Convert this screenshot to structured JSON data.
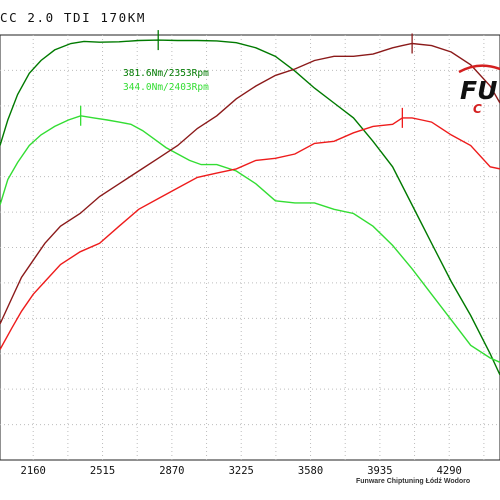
{
  "title": "CC 2.0 TDI 170KM",
  "chart_data": {
    "type": "line",
    "title": "CC 2.0 TDI 170KM",
    "xlabel": "",
    "ylabel": "",
    "x_ticks": [
      2160,
      2515,
      2870,
      3225,
      3580,
      3935,
      4290
    ],
    "xlim": [
      1990,
      4550
    ],
    "ylim": [
      0,
      100
    ],
    "grid": true,
    "annotations": [
      {
        "text": "381.6Nm/2353Rpm",
        "color": "#007a00"
      },
      {
        "text": "344.0Nm/2403Rpm",
        "color": "#33dd33"
      }
    ],
    "series": [
      {
        "color": "#007a00",
        "x": [
          1990,
          2030,
          2080,
          2140,
          2200,
          2270,
          2353,
          2420,
          2500,
          2600,
          2700,
          2800,
          2900,
          3000,
          3100,
          3200,
          3300,
          3400,
          3500,
          3600,
          3700,
          3800,
          3900,
          4000,
          4100,
          4200,
          4300,
          4400,
          4500,
          4550
        ],
        "y": [
          74,
          80,
          86,
          91,
          94,
          96.5,
          98,
          98.5,
          98.3,
          98.4,
          98.7,
          98.8,
          98.7,
          98.7,
          98.6,
          98.2,
          97,
          95,
          91.5,
          87.5,
          84,
          80.5,
          75,
          69,
          60,
          51,
          42,
          34,
          25,
          20
        ]
      },
      {
        "color": "#33dd33",
        "x": [
          1990,
          2030,
          2080,
          2140,
          2200,
          2270,
          2340,
          2403,
          2470,
          2540,
          2600,
          2660,
          2720,
          2780,
          2840,
          2900,
          2960,
          3020,
          3100,
          3200,
          3300,
          3400,
          3500,
          3600,
          3700,
          3800,
          3900,
          4000,
          4100,
          4200,
          4300,
          4400,
          4500,
          4550
        ],
        "y": [
          60,
          66,
          70,
          74,
          76.5,
          78.5,
          80,
          81,
          80.5,
          80,
          79.5,
          79,
          77.5,
          75.5,
          73.5,
          72,
          70.5,
          69.5,
          69.5,
          68,
          65,
          61,
          60.5,
          60.5,
          59,
          58,
          55,
          50.5,
          45,
          39,
          33,
          27,
          24,
          23
        ]
      },
      {
        "color": "#8b1a1a",
        "x": [
          1990,
          2050,
          2100,
          2160,
          2220,
          2300,
          2400,
          2500,
          2600,
          2700,
          2800,
          2900,
          3000,
          3100,
          3200,
          3300,
          3400,
          3500,
          3600,
          3700,
          3800,
          3900,
          4000,
          4050,
          4100,
          4200,
          4300,
          4400,
          4500,
          4550
        ],
        "y": [
          32,
          38,
          43,
          47,
          51,
          55,
          58,
          62,
          65,
          68,
          71,
          74,
          78,
          81,
          85,
          88,
          90.5,
          92,
          94,
          95,
          95,
          95.5,
          97,
          97.5,
          98,
          97.5,
          96,
          93,
          88,
          84
        ]
      },
      {
        "color": "#ee1c1c",
        "x": [
          1990,
          2050,
          2100,
          2160,
          2220,
          2300,
          2400,
          2500,
          2600,
          2700,
          2800,
          2900,
          3000,
          3100,
          3200,
          3300,
          3400,
          3500,
          3600,
          3700,
          3800,
          3900,
          4000,
          4050,
          4100,
          4150,
          4200,
          4300,
          4400,
          4500,
          4550
        ],
        "y": [
          26,
          31,
          35,
          39,
          42,
          46,
          49,
          51,
          55,
          59,
          61.5,
          64,
          66.5,
          67.5,
          68.5,
          70.5,
          71,
          72,
          74.5,
          75,
          77,
          78.5,
          79,
          80.5,
          80.5,
          80,
          79.5,
          76.5,
          74,
          69,
          68.5
        ]
      }
    ]
  },
  "logo": {
    "text": "FU",
    "subtext": "C"
  },
  "footer": "Funware Chiptuning Łódź Wodoro"
}
